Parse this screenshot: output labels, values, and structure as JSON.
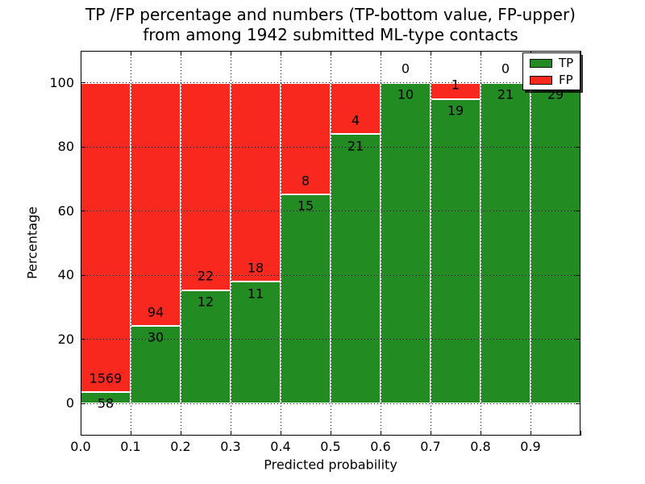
{
  "figure": {
    "title_line1": "TP /FP percentage and numbers (TP-bottom value, FP-upper)",
    "title_line2": "from among 1942 submitted ML-type contacts"
  },
  "chart_data": {
    "type": "bar",
    "stacked": true,
    "normalized_to_percent": true,
    "title": "TP /FP percentage and numbers (TP-bottom value, FP-upper)\nfrom among 1942 submitted ML-type contacts",
    "xlabel": "Predicted probability",
    "ylabel": "Percentage",
    "total_contacts": 1942,
    "xlim": [
      0.0,
      1.0
    ],
    "ylim": [
      -10,
      110
    ],
    "x_tick_labels": [
      "0.0",
      "0.1",
      "0.2",
      "0.3",
      "0.4",
      "0.5",
      "0.6",
      "0.7",
      "0.8",
      "0.9"
    ],
    "y_tick_values": [
      0,
      20,
      40,
      60,
      80,
      100
    ],
    "bin_starts": [
      0.0,
      0.1,
      0.2,
      0.3,
      0.4,
      0.5,
      0.6,
      0.7,
      0.8,
      0.9
    ],
    "bin_width": 0.1,
    "series": [
      {
        "name": "TP",
        "color": "#228b22",
        "counts": [
          58,
          30,
          12,
          11,
          15,
          21,
          10,
          19,
          21,
          29
        ]
      },
      {
        "name": "FP",
        "color": "#f9281e",
        "counts": [
          1569,
          94,
          22,
          18,
          8,
          4,
          0,
          1,
          0,
          0
        ]
      }
    ],
    "tp_percent_per_bin": [
      3.6,
      24.2,
      35.3,
      37.9,
      65.2,
      84.0,
      100.0,
      95.0,
      100.0,
      100.0
    ],
    "grid": {
      "visible": true,
      "style": "dotted",
      "color": "#000000"
    },
    "legend": {
      "position": "upper right",
      "entries": [
        "TP",
        "FP"
      ],
      "shadow": true
    }
  },
  "colors": {
    "background": "#ffffff",
    "axes_frame": "#000000",
    "tp_green": "#228b22",
    "fp_red": "#f9281e",
    "bar_edge": "#ffffff",
    "text": "#000000"
  }
}
